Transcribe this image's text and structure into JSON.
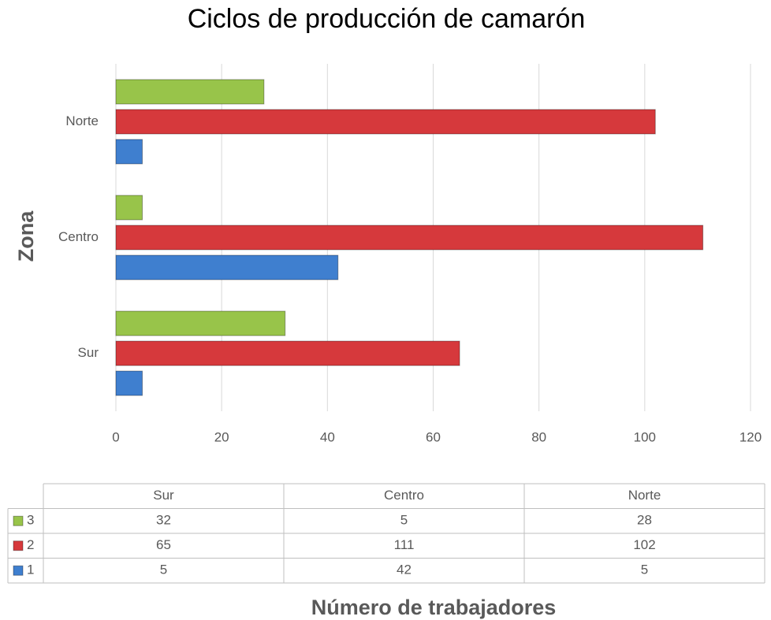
{
  "chart_data": {
    "type": "bar",
    "orientation": "horizontal",
    "title": "Ciclos de producción de camarón",
    "x_label": "Número de trabajadores",
    "y_label": "Zona",
    "categories": [
      "Sur",
      "Centro",
      "Norte"
    ],
    "series": [
      {
        "name": "1",
        "color": "#3f7fcf",
        "values": [
          5,
          42,
          5
        ]
      },
      {
        "name": "2",
        "color": "#d6393c",
        "values": [
          65,
          111,
          102
        ]
      },
      {
        "name": "3",
        "color": "#98c44a",
        "values": [
          32,
          5,
          28
        ]
      }
    ],
    "xlim": [
      0,
      120
    ],
    "xticks": [
      0,
      20,
      40,
      60,
      80,
      100,
      120
    ],
    "grid": true,
    "data_table": true
  }
}
